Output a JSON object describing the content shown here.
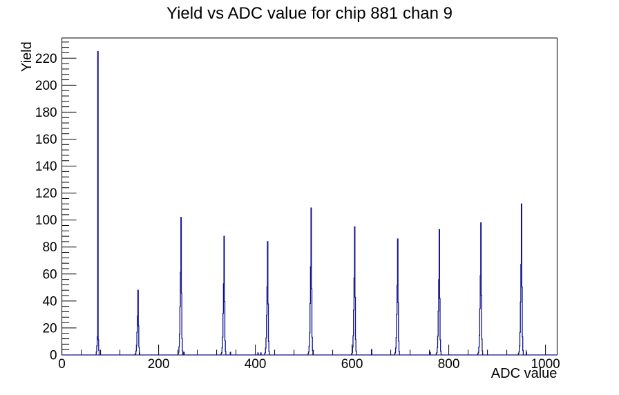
{
  "page": {
    "title": "Yield vs ADC value for chip 881 chan 9"
  },
  "chart_data": {
    "type": "line",
    "style": "step-histogram (ROOT TH1 outline)",
    "title": "Yield vs ADC value for chip 881 chan 9",
    "xlabel": "ADC value",
    "ylabel": "Yield",
    "xlim": [
      0,
      1024
    ],
    "ylim": [
      0,
      235
    ],
    "x_major_ticks": [
      0,
      200,
      400,
      600,
      800,
      1000
    ],
    "x_minor_tick_interval": 40,
    "y_major_ticks": [
      0,
      20,
      40,
      60,
      80,
      100,
      120,
      140,
      160,
      180,
      200,
      220
    ],
    "y_minor_tick_interval": 4,
    "grid": false,
    "legend": false,
    "line_color": "#10108c",
    "frame_color": "#000000",
    "background_color": "#ffffff",
    "peaks": [
      {
        "adc": 74,
        "yield": 225,
        "narrow": true
      },
      {
        "adc": 157,
        "yield": 48
      },
      {
        "adc": 246,
        "yield": 102
      },
      {
        "adc": 335,
        "yield": 88
      },
      {
        "adc": 425,
        "yield": 84
      },
      {
        "adc": 515,
        "yield": 109
      },
      {
        "adc": 605,
        "yield": 95
      },
      {
        "adc": 694,
        "yield": 86
      },
      {
        "adc": 780,
        "yield": 93
      },
      {
        "adc": 866,
        "yield": 98
      },
      {
        "adc": 950,
        "yield": 112
      }
    ],
    "minor_bins": [
      {
        "adc": 252,
        "yield": 2
      },
      {
        "adc": 348,
        "yield": 2
      },
      {
        "adc": 405,
        "yield": 1.5
      },
      {
        "adc": 411,
        "yield": 1.5
      },
      {
        "adc": 640,
        "yield": 4
      },
      {
        "adc": 761,
        "yield": 2
      },
      {
        "adc": 960,
        "yield": 2
      }
    ],
    "peak_profile": {
      "-6": 0.01,
      "-5": 0.02,
      "-4": 0.06,
      "-3": 0.15,
      "-2": 0.35,
      "-1": 0.6,
      "0": 1,
      "1": 0.45,
      "2": 0.12,
      "3": 0.03
    },
    "narrow_peak_profile": {
      "-3": 0.01,
      "-2": 0.03,
      "-1": 0.06,
      "0": 1,
      "1": 0.05,
      "2": 0.015
    }
  }
}
